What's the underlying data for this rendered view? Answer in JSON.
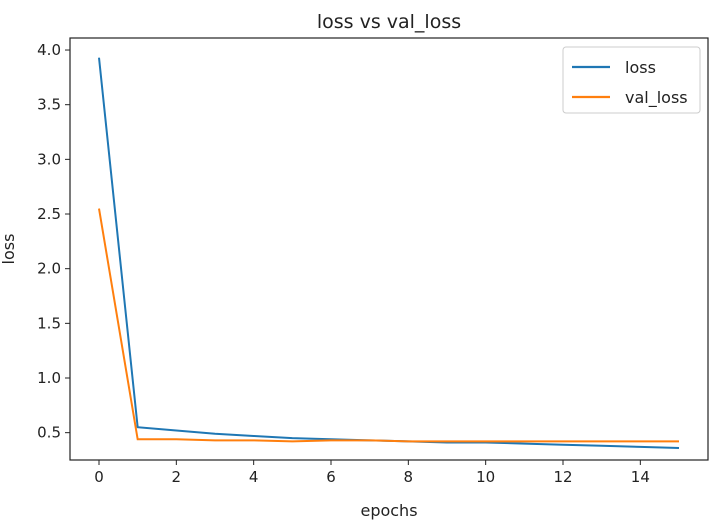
{
  "chart_data": {
    "type": "line",
    "title": "loss vs val_loss",
    "xlabel": "epochs",
    "ylabel": "loss",
    "xlim": [
      -0.75,
      15.75
    ],
    "ylim": [
      0.25,
      4.11
    ],
    "xticks": [
      0,
      2,
      4,
      6,
      8,
      10,
      12,
      14
    ],
    "yticks": [
      0.5,
      1.0,
      1.5,
      2.0,
      2.5,
      3.0,
      3.5,
      4.0
    ],
    "ytick_labels": [
      "0.5",
      "1.0",
      "1.5",
      "2.0",
      "2.5",
      "3.0",
      "3.5",
      "4.0"
    ],
    "grid": false,
    "legend_position": "top-right",
    "x": [
      0,
      1,
      2,
      3,
      4,
      5,
      6,
      7,
      8,
      9,
      10,
      11,
      12,
      13,
      14,
      15
    ],
    "series": [
      {
        "name": "loss",
        "color": "#1f77b4",
        "values": [
          3.93,
          0.55,
          0.52,
          0.49,
          0.47,
          0.45,
          0.44,
          0.43,
          0.42,
          0.41,
          0.41,
          0.4,
          0.39,
          0.38,
          0.37,
          0.36
        ]
      },
      {
        "name": "val_loss",
        "color": "#ff7f0e",
        "values": [
          2.55,
          0.44,
          0.44,
          0.43,
          0.43,
          0.42,
          0.43,
          0.43,
          0.42,
          0.42,
          0.42,
          0.42,
          0.42,
          0.42,
          0.42,
          0.42
        ]
      }
    ]
  }
}
